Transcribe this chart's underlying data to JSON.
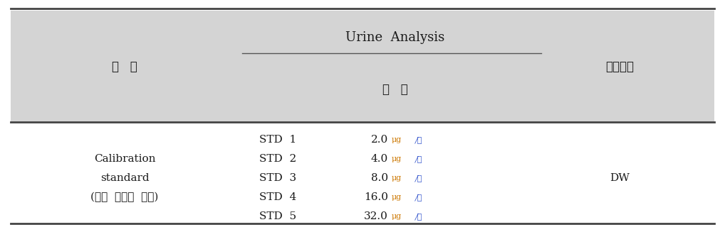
{
  "bg_color": "#d4d4d4",
  "white_color": "#ffffff",
  "text_color": "#1a1a1a",
  "ug_color": "#cc7700",
  "liter_color": "#3355cc",
  "fig_width": 10.18,
  "fig_height": 3.27,
  "header_line1": "Urine  Analysis",
  "header_col1": "분   류",
  "header_col2": "농   도",
  "header_col3": "희석용매",
  "left_labels": [
    {
      "text": "Calibration",
      "row": 1
    },
    {
      "text": "standard",
      "row": 2
    },
    {
      "text": "(매회  사용시  조제)",
      "row": 3
    }
  ],
  "std_labels": [
    "STD  1",
    "STD  2",
    "STD  3",
    "STD  4",
    "STD  5"
  ],
  "conc_values": [
    "2.0",
    "4.0",
    "8.0",
    "16.0",
    "32.0"
  ],
  "dw_text": "DW",
  "dw_row": 2
}
